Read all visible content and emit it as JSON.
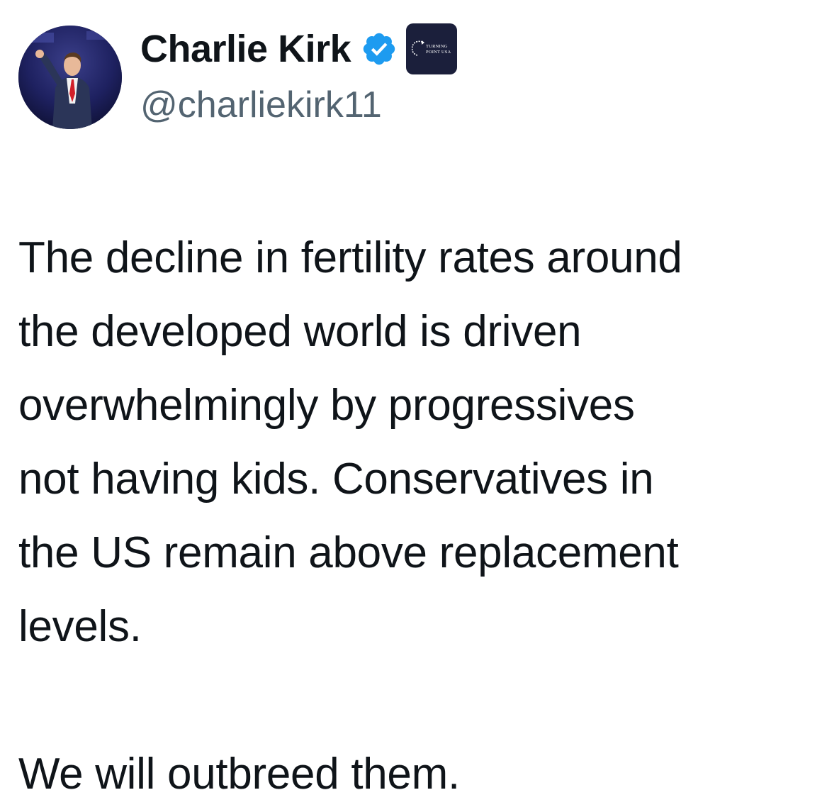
{
  "tweet": {
    "author": {
      "display_name": "Charlie Kirk",
      "handle": "@charliekirk11",
      "verified_icon": "verified-badge-icon",
      "affiliate_logo": {
        "name": "turning-point-usa-logo",
        "text": "TURNING POINT USA"
      },
      "avatar_icon": "profile-avatar"
    },
    "body": {
      "paragraph_1_lines": [
        "The decline in fertility rates around",
        "the developed world is driven",
        "overwhelmingly by progressives",
        "not having kids. Conservatives in",
        "the US remain above replacement",
        "levels."
      ],
      "paragraph_2": "We will outbreed them."
    }
  },
  "colors": {
    "text": "#0f1419",
    "secondary_text": "#536471",
    "verified_blue": "#1d9bf0",
    "affiliate_bg": "#1b1f3b"
  }
}
